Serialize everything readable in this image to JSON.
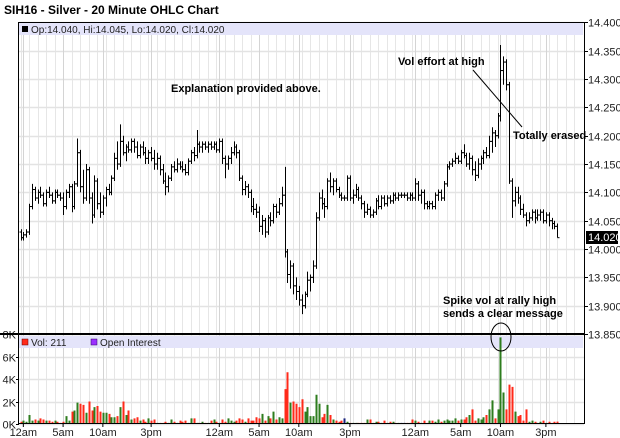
{
  "chart_data": {
    "type": "ohlc",
    "title": "SIH16 - Silver - 20 Minute OHLC Chart",
    "price_legend": "Op:14.040, Hi:14.045, Lo:14.020, Cl:14.020",
    "last_price_label": "14.020",
    "y_ticks": [
      "14.400",
      "14.350",
      "14.300",
      "14.250",
      "14.200",
      "14.150",
      "14.100",
      "14.050",
      "14.000",
      "13.950",
      "13.900",
      "13.850"
    ],
    "ylim": [
      13.85,
      14.4
    ],
    "grid": true,
    "x_tick_labels": [
      {
        "label": "12am",
        "bar": 1
      },
      {
        "label": "5am",
        "bar": 15
      },
      {
        "label": "10am",
        "bar": 29
      },
      {
        "label": "3pm",
        "bar": 46
      },
      {
        "label": "12am",
        "bar": 70
      },
      {
        "label": "5am",
        "bar": 84
      },
      {
        "label": "10am",
        "bar": 98
      },
      {
        "label": "3pm",
        "bar": 116
      },
      {
        "label": "12am",
        "bar": 139
      },
      {
        "label": "5am",
        "bar": 155
      },
      {
        "label": "10am",
        "bar": 169
      },
      {
        "label": "3pm",
        "bar": 185
      }
    ],
    "bars": [
      [
        14.03,
        14.035,
        14.015,
        14.02
      ],
      [
        14.02,
        14.03,
        14.015,
        14.025
      ],
      [
        14.025,
        14.035,
        14.02,
        14.03
      ],
      [
        14.03,
        14.08,
        14.025,
        14.075
      ],
      [
        14.075,
        14.115,
        14.07,
        14.105
      ],
      [
        14.105,
        14.11,
        14.085,
        14.09
      ],
      [
        14.09,
        14.105,
        14.08,
        14.1
      ],
      [
        14.1,
        14.11,
        14.09,
        14.095
      ],
      [
        14.095,
        14.1,
        14.075,
        14.08
      ],
      [
        14.08,
        14.105,
        14.075,
        14.1
      ],
      [
        14.1,
        14.11,
        14.09,
        14.095
      ],
      [
        14.095,
        14.1,
        14.08,
        14.085
      ],
      [
        14.085,
        14.105,
        14.08,
        14.1
      ],
      [
        14.1,
        14.105,
        14.09,
        14.095
      ],
      [
        14.095,
        14.1,
        14.085,
        14.09
      ],
      [
        14.09,
        14.1,
        14.06,
        14.075
      ],
      [
        14.075,
        14.105,
        14.07,
        14.1
      ],
      [
        14.1,
        14.115,
        14.09,
        14.11
      ],
      [
        14.11,
        14.115,
        14.065,
        14.075
      ],
      [
        14.075,
        14.12,
        14.07,
        14.115
      ],
      [
        14.115,
        14.195,
        14.11,
        14.17
      ],
      [
        14.17,
        14.175,
        14.1,
        14.11
      ],
      [
        14.11,
        14.14,
        14.08,
        14.09
      ],
      [
        14.09,
        14.15,
        14.085,
        14.14
      ],
      [
        14.14,
        14.145,
        14.08,
        14.09
      ],
      [
        14.09,
        14.1,
        14.045,
        14.06
      ],
      [
        14.06,
        14.13,
        14.055,
        14.12
      ],
      [
        14.12,
        14.125,
        14.07,
        14.08
      ],
      [
        14.08,
        14.1,
        14.055,
        14.065
      ],
      [
        14.065,
        14.095,
        14.06,
        14.09
      ],
      [
        14.09,
        14.11,
        14.075,
        14.105
      ],
      [
        14.105,
        14.115,
        14.095,
        14.1
      ],
      [
        14.1,
        14.13,
        14.095,
        14.125
      ],
      [
        14.125,
        14.17,
        14.12,
        14.16
      ],
      [
        14.16,
        14.19,
        14.14,
        14.15
      ],
      [
        14.15,
        14.22,
        14.145,
        14.19
      ],
      [
        14.19,
        14.2,
        14.165,
        14.17
      ],
      [
        14.17,
        14.185,
        14.155,
        14.18
      ],
      [
        14.18,
        14.19,
        14.17,
        14.175
      ],
      [
        14.175,
        14.195,
        14.17,
        14.19
      ],
      [
        14.19,
        14.195,
        14.17,
        14.18
      ],
      [
        14.18,
        14.19,
        14.16,
        14.165
      ],
      [
        14.165,
        14.185,
        14.16,
        14.18
      ],
      [
        14.18,
        14.19,
        14.165,
        14.17
      ],
      [
        14.17,
        14.18,
        14.15,
        14.16
      ],
      [
        14.16,
        14.175,
        14.15,
        14.17
      ],
      [
        14.17,
        14.18,
        14.155,
        14.16
      ],
      [
        14.16,
        14.175,
        14.14,
        14.15
      ],
      [
        14.15,
        14.17,
        14.14,
        14.16
      ],
      [
        14.16,
        14.165,
        14.13,
        14.14
      ],
      [
        14.14,
        14.15,
        14.115,
        14.12
      ],
      [
        14.12,
        14.135,
        14.095,
        14.11
      ],
      [
        14.11,
        14.13,
        14.1,
        14.125
      ],
      [
        14.125,
        14.15,
        14.12,
        14.145
      ],
      [
        14.145,
        14.155,
        14.135,
        14.14
      ],
      [
        14.14,
        14.16,
        14.135,
        14.15
      ],
      [
        14.15,
        14.155,
        14.14,
        14.145
      ],
      [
        14.145,
        14.155,
        14.135,
        14.14
      ],
      [
        14.14,
        14.15,
        14.13,
        14.135
      ],
      [
        14.135,
        14.16,
        14.13,
        14.155
      ],
      [
        14.155,
        14.175,
        14.15,
        14.17
      ],
      [
        14.17,
        14.18,
        14.155,
        14.165
      ],
      [
        14.165,
        14.21,
        14.16,
        14.185
      ],
      [
        14.185,
        14.19,
        14.17,
        14.18
      ],
      [
        14.18,
        14.19,
        14.17,
        14.185
      ],
      [
        14.185,
        14.19,
        14.175,
        14.18
      ],
      [
        14.18,
        14.19,
        14.17,
        14.185
      ],
      [
        14.185,
        14.19,
        14.175,
        14.18
      ],
      [
        14.18,
        14.19,
        14.175,
        14.185
      ],
      [
        14.185,
        14.19,
        14.17,
        14.175
      ],
      [
        14.175,
        14.195,
        14.17,
        14.19
      ],
      [
        14.19,
        14.195,
        14.15,
        14.16
      ],
      [
        14.16,
        14.165,
        14.125,
        14.15
      ],
      [
        14.15,
        14.165,
        14.14,
        14.16
      ],
      [
        14.16,
        14.18,
        14.15,
        14.17
      ],
      [
        14.17,
        14.19,
        14.165,
        14.18
      ],
      [
        14.18,
        14.185,
        14.16,
        14.17
      ],
      [
        14.17,
        14.175,
        14.12,
        14.125
      ],
      [
        14.125,
        14.13,
        14.095,
        14.105
      ],
      [
        14.105,
        14.12,
        14.095,
        14.11
      ],
      [
        14.11,
        14.115,
        14.09,
        14.1
      ],
      [
        14.1,
        14.105,
        14.065,
        14.075
      ],
      [
        14.075,
        14.09,
        14.06,
        14.07
      ],
      [
        14.07,
        14.08,
        14.055,
        14.065
      ],
      [
        14.065,
        14.075,
        14.03,
        14.04
      ],
      [
        14.04,
        14.06,
        14.025,
        14.05
      ],
      [
        14.05,
        14.055,
        14.02,
        14.03
      ],
      [
        14.03,
        14.06,
        14.025,
        14.055
      ],
      [
        14.055,
        14.065,
        14.04,
        14.05
      ],
      [
        14.05,
        14.08,
        14.045,
        14.075
      ],
      [
        14.075,
        14.08,
        14.055,
        14.065
      ],
      [
        14.065,
        14.09,
        14.06,
        14.08
      ],
      [
        14.08,
        14.11,
        14.075,
        14.095
      ],
      [
        14.095,
        14.145,
        13.985,
        13.995
      ],
      [
        13.995,
        14.0,
        13.94,
        13.955
      ],
      [
        13.955,
        13.98,
        13.93,
        13.97
      ],
      [
        13.97,
        13.975,
        13.92,
        13.935
      ],
      [
        13.935,
        13.95,
        13.91,
        13.925
      ],
      [
        13.925,
        13.935,
        13.9,
        13.91
      ],
      [
        13.91,
        13.92,
        13.885,
        13.9
      ],
      [
        13.9,
        13.925,
        13.895,
        13.92
      ],
      [
        13.92,
        13.96,
        13.915,
        13.945
      ],
      [
        13.945,
        13.955,
        13.925,
        13.95
      ],
      [
        13.95,
        13.98,
        13.94,
        13.97
      ],
      [
        13.97,
        14.065,
        13.965,
        14.055
      ],
      [
        14.055,
        14.1,
        14.05,
        14.09
      ],
      [
        14.09,
        14.105,
        14.07,
        14.08
      ],
      [
        14.08,
        14.09,
        14.055,
        14.075
      ],
      [
        14.075,
        14.125,
        14.07,
        14.12
      ],
      [
        14.12,
        14.135,
        14.1,
        14.11
      ],
      [
        14.11,
        14.125,
        14.095,
        14.12
      ],
      [
        14.12,
        14.125,
        14.1,
        14.105
      ],
      [
        14.105,
        14.11,
        14.09,
        14.095
      ],
      [
        14.095,
        14.1,
        14.085,
        14.09
      ],
      [
        14.09,
        14.095,
        14.085,
        14.09
      ],
      [
        14.09,
        14.13,
        14.085,
        14.125
      ],
      [
        14.125,
        14.13,
        14.085,
        14.09
      ],
      [
        14.09,
        14.105,
        14.08,
        14.095
      ],
      [
        14.095,
        14.115,
        14.09,
        14.105
      ],
      [
        14.105,
        14.11,
        14.085,
        14.09
      ],
      [
        14.09,
        14.095,
        14.07,
        14.08
      ],
      [
        14.08,
        14.085,
        14.055,
        14.065
      ],
      [
        14.065,
        14.08,
        14.06,
        14.07
      ],
      [
        14.07,
        14.075,
        14.055,
        14.06
      ],
      [
        14.06,
        14.07,
        14.055,
        14.065
      ],
      [
        14.065,
        14.09,
        14.06,
        14.085
      ],
      [
        14.085,
        14.095,
        14.07,
        14.075
      ],
      [
        14.075,
        14.095,
        14.07,
        14.09
      ],
      [
        14.09,
        14.095,
        14.075,
        14.08
      ],
      [
        14.08,
        14.095,
        14.075,
        14.09
      ],
      [
        14.09,
        14.095,
        14.08,
        14.085
      ],
      [
        14.085,
        14.1,
        14.08,
        14.095
      ],
      [
        14.095,
        14.1,
        14.085,
        14.09
      ],
      [
        14.09,
        14.1,
        14.085,
        14.095
      ],
      [
        14.095,
        14.1,
        14.09,
        14.095
      ],
      [
        14.095,
        14.1,
        14.09,
        14.095
      ],
      [
        14.095,
        14.1,
        14.085,
        14.09
      ],
      [
        14.09,
        14.1,
        14.085,
        14.095
      ],
      [
        14.095,
        14.1,
        14.085,
        14.09
      ],
      [
        14.09,
        14.125,
        14.085,
        14.115
      ],
      [
        14.115,
        14.12,
        14.085,
        14.095
      ],
      [
        14.095,
        14.105,
        14.08,
        14.1
      ],
      [
        14.1,
        14.105,
        14.07,
        14.08
      ],
      [
        14.08,
        14.085,
        14.07,
        14.075
      ],
      [
        14.075,
        14.085,
        14.07,
        14.08
      ],
      [
        14.08,
        14.085,
        14.07,
        14.075
      ],
      [
        14.075,
        14.1,
        14.07,
        14.095
      ],
      [
        14.095,
        14.105,
        14.085,
        14.1
      ],
      [
        14.1,
        14.105,
        14.085,
        14.09
      ],
      [
        14.09,
        14.12,
        14.085,
        14.115
      ],
      [
        14.115,
        14.15,
        14.11,
        14.145
      ],
      [
        14.145,
        14.155,
        14.14,
        14.15
      ],
      [
        14.15,
        14.16,
        14.145,
        14.155
      ],
      [
        14.155,
        14.17,
        14.15,
        14.16
      ],
      [
        14.16,
        14.165,
        14.15,
        14.155
      ],
      [
        14.155,
        14.175,
        14.15,
        14.17
      ],
      [
        14.17,
        14.185,
        14.16,
        14.165
      ],
      [
        14.165,
        14.17,
        14.145,
        14.15
      ],
      [
        14.15,
        14.17,
        14.14,
        14.16
      ],
      [
        14.16,
        14.165,
        14.13,
        14.14
      ],
      [
        14.14,
        14.155,
        14.12,
        14.13
      ],
      [
        14.13,
        14.16,
        14.125,
        14.15
      ],
      [
        14.15,
        14.165,
        14.14,
        14.16
      ],
      [
        14.16,
        14.175,
        14.15,
        14.17
      ],
      [
        14.17,
        14.18,
        14.16,
        14.165
      ],
      [
        14.165,
        14.2,
        14.16,
        14.19
      ],
      [
        14.19,
        14.215,
        14.17,
        14.205
      ],
      [
        14.205,
        14.21,
        14.18,
        14.2
      ],
      [
        14.2,
        14.24,
        14.195,
        14.235
      ],
      [
        14.235,
        14.36,
        14.225,
        14.315
      ],
      [
        14.315,
        14.34,
        14.29,
        14.33
      ],
      [
        14.33,
        14.335,
        14.28,
        14.29
      ],
      [
        14.29,
        14.295,
        14.115,
        14.12
      ],
      [
        14.12,
        14.125,
        14.055,
        14.085
      ],
      [
        14.085,
        14.11,
        14.075,
        14.1
      ],
      [
        14.1,
        14.11,
        14.08,
        14.09
      ],
      [
        14.09,
        14.095,
        14.06,
        14.07
      ],
      [
        14.07,
        14.08,
        14.055,
        14.06
      ],
      [
        14.06,
        14.065,
        14.04,
        14.05
      ],
      [
        14.05,
        14.065,
        14.045,
        14.055
      ],
      [
        14.055,
        14.07,
        14.05,
        14.065
      ],
      [
        14.065,
        14.07,
        14.045,
        14.055
      ],
      [
        14.055,
        14.07,
        14.05,
        14.06
      ],
      [
        14.06,
        14.07,
        14.05,
        14.065
      ],
      [
        14.065,
        14.07,
        14.045,
        14.05
      ],
      [
        14.05,
        14.065,
        14.045,
        14.06
      ],
      [
        14.06,
        14.065,
        14.04,
        14.05
      ],
      [
        14.05,
        14.055,
        14.035,
        14.045
      ],
      [
        14.045,
        14.05,
        14.035,
        14.04
      ],
      [
        14.04,
        14.045,
        14.02,
        14.02
      ]
    ],
    "volume": {
      "legend": "Vol: 211",
      "open_interest_legend": "Open Interest",
      "unit": "K",
      "y_ticks": [
        "8K",
        "6K",
        "4K",
        "2K",
        "0K"
      ],
      "ylim": [
        0,
        8
      ],
      "values": [
        0.2,
        0.3,
        0.2,
        0.8,
        0.3,
        0.4,
        0.3,
        0.5,
        0.4,
        0.3,
        0.3,
        0.2,
        0.3,
        0.2,
        0.1,
        0.2,
        0.7,
        0.3,
        1.1,
        1.2,
        1.9,
        1.8,
        1.7,
        1.0,
        2.0,
        1.2,
        1.5,
        1.6,
        1.1,
        1.0,
        1.0,
        0.9,
        0.6,
        0.6,
        0.7,
        1.5,
        2.0,
        0.8,
        1.2,
        0.4,
        0.5,
        0.6,
        0.3,
        0.4,
        0.2,
        0.5,
        0.3,
        0.4,
        0.1,
        0.1,
        0.1,
        0.2,
        0.1,
        0.4,
        0.2,
        0.1,
        0.3,
        0.2,
        0.3,
        0.1,
        0.5,
        0.5,
        0.1,
        0.1,
        0.2,
        0.1,
        0.1,
        0.3,
        0.4,
        0.2,
        0.1,
        0.4,
        0.2,
        0.5,
        0.3,
        0.2,
        0.3,
        0.5,
        0.4,
        0.2,
        0.5,
        0.3,
        0.3,
        0.6,
        0.5,
        0.9,
        0.3,
        0.7,
        0.5,
        1.1,
        0.4,
        0.6,
        0.5,
        3.1,
        4.6,
        1.9,
        2.0,
        1.8,
        1.5,
        2.2,
        1.1,
        1.5,
        0.7,
        0.7,
        2.6,
        1.8,
        0.6,
        0.9,
        1.7,
        0.8,
        0.4,
        0.3,
        0.2,
        0.3,
        0.5,
        0.2,
        0.1,
        0.1,
        0.1,
        0.1,
        0.1,
        0.1,
        0.4,
        0.4,
        0.1,
        0.2,
        0.2,
        0.1,
        0.3,
        0.1,
        0.2,
        0.2,
        0.1,
        0.1,
        0.1,
        0.1,
        0.1,
        0.1,
        0.4,
        0.3,
        0.2,
        0.1,
        0.3,
        0.1,
        0.3,
        0.3,
        0.2,
        0.4,
        0.2,
        0.3,
        0.4,
        0.3,
        0.3,
        0.5,
        0.3,
        0.4,
        0.4,
        0.6,
        0.8,
        1.3,
        0.3,
        0.5,
        0.4,
        0.6,
        0.8,
        1.3,
        2.1,
        0.5,
        1.3,
        7.7,
        2.8,
        1.3,
        3.5,
        3.3,
        1.1,
        0.7,
        0.8,
        0.3,
        1.3,
        0.2,
        0.3,
        0.2,
        0.1,
        0.2,
        0.3,
        0.1,
        0.2,
        0.1,
        0.2,
        0.211
      ],
      "colors": {
        "up": "#2e7d1e",
        "down": "#ff2a1a",
        "unchanged": "#1a237e"
      }
    },
    "annotations": {
      "explanation": "Explanation provided above.",
      "vol_effort": "Vol effort at high",
      "totally_erased": "Totally erased",
      "spike_line1": "Spike vol at rally high",
      "spike_line2": "sends a clear message"
    },
    "colors": {
      "legend_band": "#e4e4fa",
      "price_bar": "#000000",
      "open_interest": "#9b30ff",
      "grid": "#e3e3e3"
    }
  }
}
